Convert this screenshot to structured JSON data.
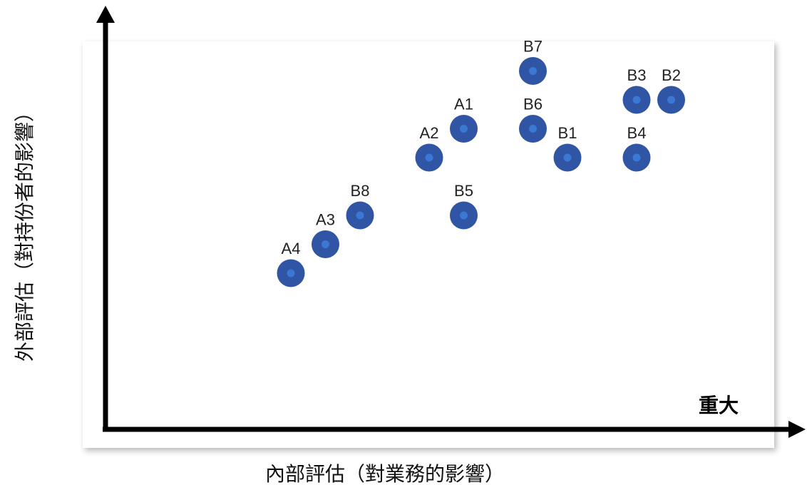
{
  "chart_data": {
    "type": "scatter",
    "xlabel": "內部評估（對業務的影響）",
    "ylabel": "外部評估（對持份者的影響）",
    "annotation": "重大",
    "marker_color": "#2f55a4",
    "marker_inner_color": "#3a78d4",
    "grid": false,
    "points": [
      {
        "label": "A1",
        "x": 6,
        "y": 6
      },
      {
        "label": "A2",
        "x": 5,
        "y": 5
      },
      {
        "label": "A3",
        "x": 2,
        "y": 2
      },
      {
        "label": "A4",
        "x": 1,
        "y": 1
      },
      {
        "label": "B1",
        "x": 9,
        "y": 5
      },
      {
        "label": "B2",
        "x": 12,
        "y": 7
      },
      {
        "label": "B3",
        "x": 11,
        "y": 7
      },
      {
        "label": "B4",
        "x": 11,
        "y": 5
      },
      {
        "label": "B5",
        "x": 6,
        "y": 3
      },
      {
        "label": "B6",
        "x": 8,
        "y": 6
      },
      {
        "label": "B7",
        "x": 8,
        "y": 8
      },
      {
        "label": "B8",
        "x": 3,
        "y": 3
      }
    ]
  }
}
